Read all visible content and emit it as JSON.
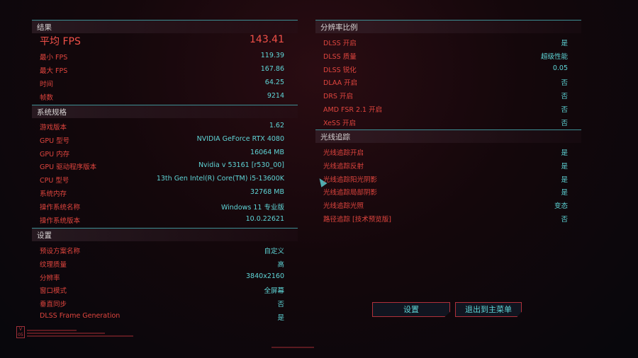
{
  "results": {
    "title": "结果",
    "rows": [
      {
        "label": "平均 FPS",
        "value": "143.41"
      },
      {
        "label": "最小 FPS",
        "value": "119.39"
      },
      {
        "label": "最大 FPS",
        "value": "167.86"
      },
      {
        "label": "时间",
        "value": "64.25"
      },
      {
        "label": "帧数",
        "value": "9214"
      }
    ]
  },
  "specs": {
    "title": "系统规格",
    "rows": [
      {
        "label": "游戏版本",
        "value": "1.62"
      },
      {
        "label": "GPU 型号",
        "value": "NVIDIA GeForce RTX 4080"
      },
      {
        "label": "GPU 内存",
        "value": "16064 MB"
      },
      {
        "label": "GPU 驱动程序版本",
        "value": "Nvidia v 53161 [r530_00]"
      },
      {
        "label": "CPU 型号",
        "value": "13th Gen Intel(R) Core(TM) i5-13600K"
      },
      {
        "label": "系统内存",
        "value": "32768 MB"
      },
      {
        "label": "操作系统名称",
        "value": "Windows 11 专业版"
      },
      {
        "label": "操作系统版本",
        "value": "10.0.22621"
      }
    ]
  },
  "settings": {
    "title": "设置",
    "rows": [
      {
        "label": "预设方案名称",
        "value": "自定义"
      },
      {
        "label": "纹理质量",
        "value": "高"
      },
      {
        "label": "分辨率",
        "value": "3840x2160"
      },
      {
        "label": "窗口模式",
        "value": "全屏幕"
      },
      {
        "label": "垂直同步",
        "value": "否"
      },
      {
        "label": "DLSS Frame Generation",
        "value": "是"
      }
    ]
  },
  "scaling": {
    "title": "分辨率比例",
    "rows": [
      {
        "label": "DLSS 开启",
        "value": "是"
      },
      {
        "label": "DLSS 质量",
        "value": "超级性能"
      },
      {
        "label": "DLSS 锐化",
        "value": "0.05"
      },
      {
        "label": "DLAA 开启",
        "value": "否"
      },
      {
        "label": "DRS 开启",
        "value": "否"
      },
      {
        "label": "AMD FSR 2.1 开启",
        "value": "否"
      },
      {
        "label": "XeSS 开启",
        "value": "否"
      }
    ]
  },
  "raytracing": {
    "title": "光线追踪",
    "rows": [
      {
        "label": "光线追踪开启",
        "value": "是"
      },
      {
        "label": "光线追踪反射",
        "value": "是"
      },
      {
        "label": "光线追踪阳光阴影",
        "value": "是"
      },
      {
        "label": "光线追踪局部阴影",
        "value": "是"
      },
      {
        "label": "光线追踪光照",
        "value": "变态"
      },
      {
        "label": "路径追踪 [技术预览版]",
        "value": "否"
      }
    ]
  },
  "buttons": {
    "settings": "设置",
    "exit": "退出到主菜单"
  },
  "version_badge": "V 05",
  "colors": {
    "label": "#e0453e",
    "value": "#5fd6d8",
    "accent_line": "#3d8f94"
  }
}
